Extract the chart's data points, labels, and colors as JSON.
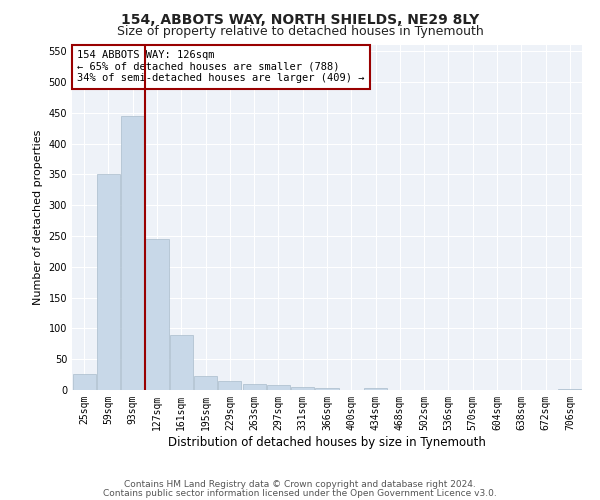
{
  "title": "154, ABBOTS WAY, NORTH SHIELDS, NE29 8LY",
  "subtitle": "Size of property relative to detached houses in Tynemouth",
  "xlabel": "Distribution of detached houses by size in Tynemouth",
  "ylabel": "Number of detached properties",
  "categories": [
    "25sqm",
    "59sqm",
    "93sqm",
    "127sqm",
    "161sqm",
    "195sqm",
    "229sqm",
    "263sqm",
    "297sqm",
    "331sqm",
    "366sqm",
    "400sqm",
    "434sqm",
    "468sqm",
    "502sqm",
    "536sqm",
    "570sqm",
    "604sqm",
    "638sqm",
    "672sqm",
    "706sqm"
  ],
  "values": [
    26,
    350,
    445,
    245,
    90,
    22,
    14,
    10,
    8,
    5,
    4,
    0,
    3,
    0,
    0,
    0,
    0,
    0,
    0,
    0,
    2
  ],
  "bar_color": "#c8d8e8",
  "bar_edge_color": "#aabccc",
  "vline_color": "#990000",
  "annotation_line1": "154 ABBOTS WAY: 126sqm",
  "annotation_line2": "← 65% of detached houses are smaller (788)",
  "annotation_line3": "34% of semi-detached houses are larger (409) →",
  "annotation_box_color": "#ffffff",
  "annotation_box_edge": "#990000",
  "ylim": [
    0,
    560
  ],
  "yticks": [
    0,
    50,
    100,
    150,
    200,
    250,
    300,
    350,
    400,
    450,
    500,
    550
  ],
  "fig_bg": "#ffffff",
  "plot_bg": "#eef2f8",
  "grid_color": "#ffffff",
  "footer_line1": "Contains HM Land Registry data © Crown copyright and database right 2024.",
  "footer_line2": "Contains public sector information licensed under the Open Government Licence v3.0.",
  "title_fontsize": 10,
  "subtitle_fontsize": 9,
  "xlabel_fontsize": 8.5,
  "ylabel_fontsize": 8,
  "tick_fontsize": 7,
  "annot_fontsize": 7.5,
  "footer_fontsize": 6.5
}
